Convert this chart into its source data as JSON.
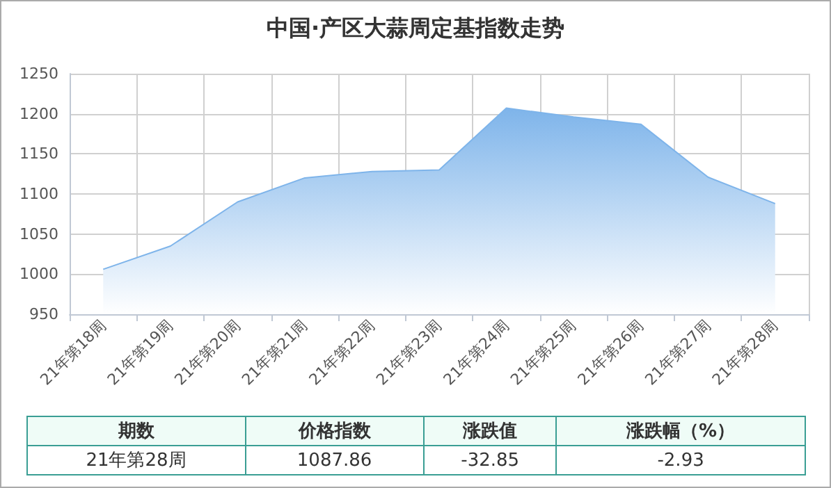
{
  "chart_data": {
    "type": "area",
    "title": "中国·产区大蒜周定基指数走势",
    "categories": [
      "21年第18周",
      "21年第19周",
      "21年第20周",
      "21年第21周",
      "21年第22周",
      "21年第23周",
      "21年第24周",
      "21年第25周",
      "21年第26周",
      "21年第27周",
      "21年第28周"
    ],
    "series": [
      {
        "color": "#7eb4ea",
        "values": [
          1006,
          1035,
          1090,
          1120,
          1128,
          1130,
          1207,
          1196,
          1187,
          1121,
          1088
        ]
      }
    ],
    "ylim": [
      950,
      1250
    ],
    "yticks": [
      950,
      1000,
      1050,
      1100,
      1150,
      1200,
      1250
    ],
    "grid": true,
    "annotations": [
      "期数",
      "价格指数",
      "涨跌值",
      "涨跌幅（%）",
      "21年第28周",
      "1087.86",
      "-32.85",
      "-2.93"
    ]
  }
}
